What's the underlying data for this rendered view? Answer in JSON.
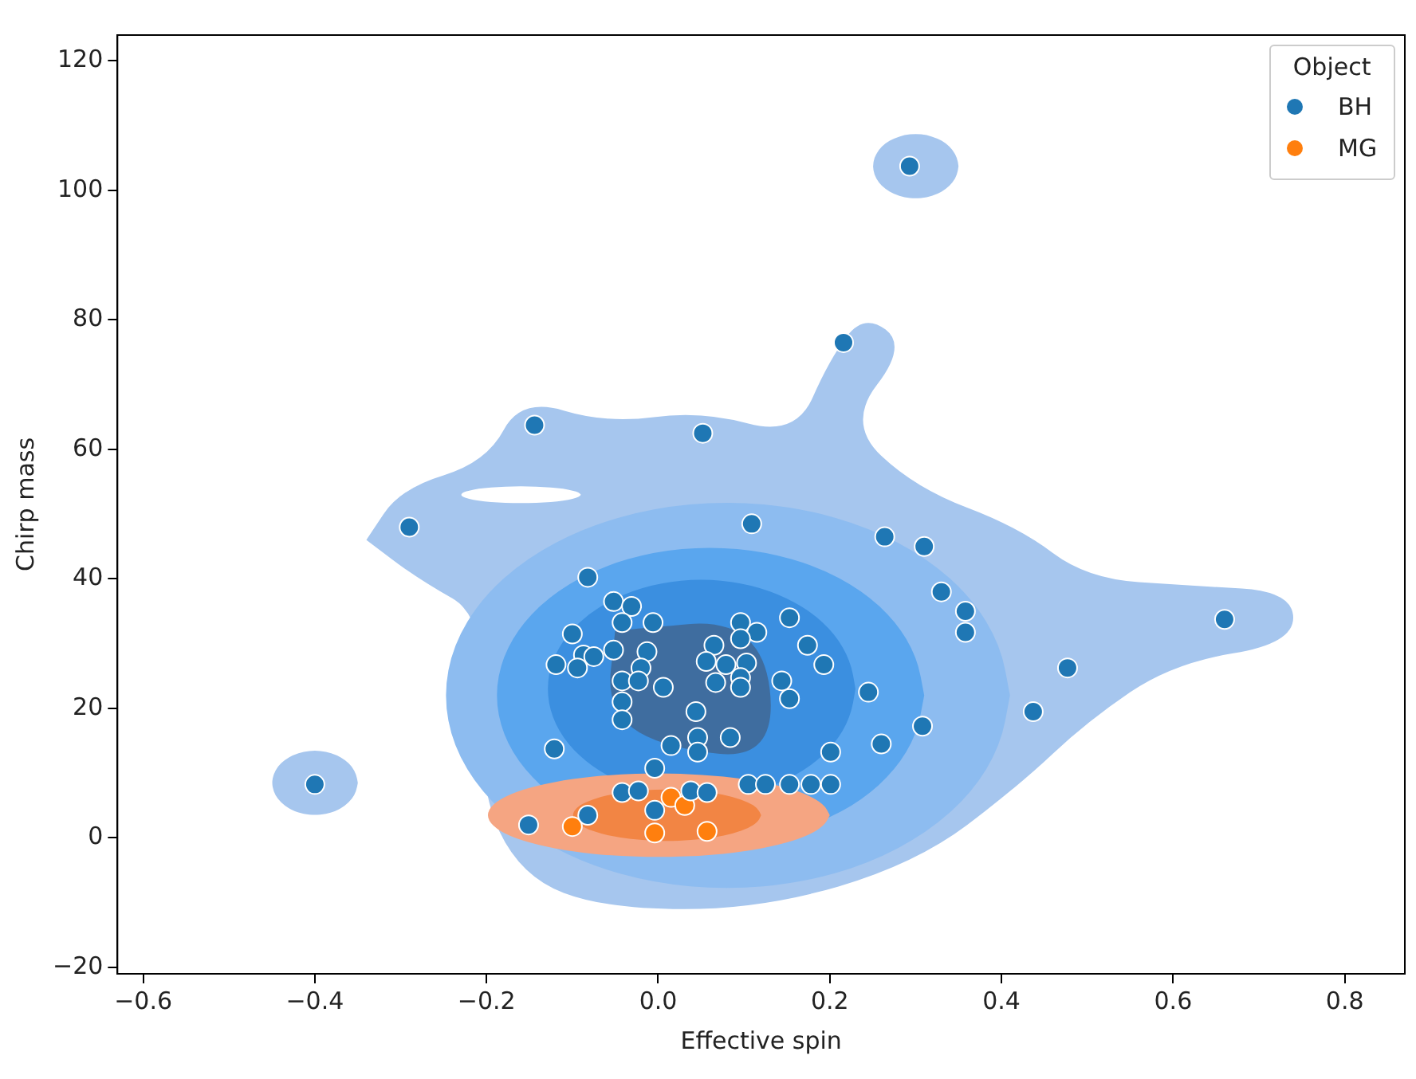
{
  "chart_data": {
    "type": "scatter",
    "xlabel": "Effective spin",
    "ylabel": "Chirp mass",
    "legend_title": "Object",
    "legend": "top right",
    "grid": false,
    "marker": "circle",
    "xlim": [
      -0.63,
      0.87
    ],
    "xticks": [
      -0.6,
      -0.4,
      -0.2,
      {
        "value": 0,
        "label": "0.0"
      },
      0.2,
      0.4,
      0.6,
      0.8
    ],
    "ylim": [
      -21,
      124
    ],
    "yticks": [
      -20,
      0,
      20,
      40,
      60,
      80,
      100,
      120
    ],
    "series": [
      {
        "name": "BH",
        "color": "#1f77b4",
        "x": [
          -0.4,
          -0.29,
          -0.144,
          0.052,
          0.216,
          0.293,
          0.109,
          0.264,
          0.31,
          0.33,
          0.358,
          0.358,
          0.477,
          0.437,
          0.308,
          0.26,
          0.245,
          0.66,
          -0.082,
          -0.052,
          -0.031,
          -0.042,
          -0.006,
          -0.1,
          -0.087,
          -0.075,
          -0.052,
          -0.119,
          -0.094,
          -0.013,
          -0.02,
          -0.042,
          -0.023,
          0.006,
          -0.042,
          -0.042,
          0.044,
          0.096,
          0.115,
          0.096,
          0.065,
          0.056,
          0.079,
          0.103,
          0.067,
          0.096,
          0.096,
          0.153,
          0.174,
          0.193,
          0.144,
          0.153,
          0.201,
          0.015,
          0.046,
          0.046,
          0.084,
          -0.121,
          -0.004,
          0.105,
          0.125,
          0.153,
          0.178,
          0.201,
          -0.042,
          -0.023,
          0.038,
          0.057,
          -0.004,
          -0.082,
          -0.151
        ],
        "values": [
          8.25,
          48,
          63.75,
          62.5,
          76.5,
          103.75,
          48.5,
          46.5,
          45,
          38,
          35,
          31.75,
          26.25,
          19.5,
          17.25,
          14.5,
          22.5,
          33.75,
          40.25,
          36.5,
          35.75,
          33.25,
          33.25,
          31.5,
          28.25,
          28,
          29,
          26.75,
          26.25,
          28.75,
          26.25,
          24.25,
          24.25,
          23.25,
          21,
          18.25,
          19.5,
          33.25,
          31.75,
          30.75,
          29.75,
          27.25,
          26.75,
          27,
          24,
          24.75,
          23.25,
          34,
          29.75,
          26.75,
          24.25,
          21.5,
          13.25,
          14.25,
          15.5,
          13.25,
          15.5,
          13.75,
          10.75,
          8.25,
          8.25,
          8.25,
          8.25,
          8.25,
          7,
          7.25,
          7.25,
          7,
          4.25,
          3.5,
          2
        ]
      },
      {
        "name": "MG",
        "color": "#ff7f0e",
        "x": [
          -0.1,
          0.015,
          0.031,
          -0.004,
          0.057
        ],
        "values": [
          1.75,
          6.25,
          5,
          0.75,
          1
        ]
      }
    ]
  }
}
